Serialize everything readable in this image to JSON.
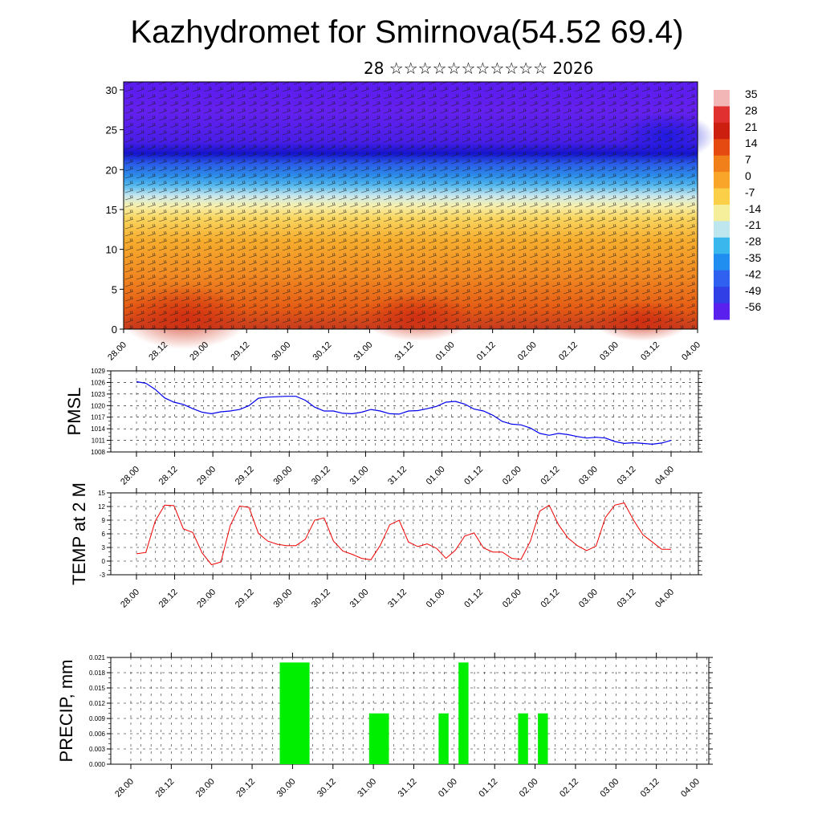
{
  "title": "Kazhydromet for Smirnova(54.52 69.4)",
  "subtitle": "28 ☆☆☆☆☆☆☆☆☆☆☆ 2026",
  "x_ticks": [
    "28.00",
    "28.12",
    "29.00",
    "29.12",
    "30.00",
    "30.12",
    "31.00",
    "31.12",
    "01.00",
    "01.12",
    "02.00",
    "02.12",
    "03.00",
    "03.12",
    "04.00"
  ],
  "chart_data": [
    {
      "type": "heatmap",
      "y_ticks": [
        "0",
        "5",
        "10",
        "15",
        "20",
        "25",
        "30"
      ],
      "ylim": [
        0,
        31
      ],
      "colorbar_labels": [
        "35",
        "28",
        "21",
        "14",
        "7",
        "0",
        "-7",
        "-14",
        "-21",
        "-28",
        "-35",
        "-42",
        "-49",
        "-56"
      ],
      "colorbar_colors": [
        "#f2b6b6",
        "#e03030",
        "#cc1f10",
        "#e54a10",
        "#f2801a",
        "#f8a52a",
        "#fbd048",
        "#f5ee9a",
        "#bde6ee",
        "#3ab8ee",
        "#1f8ef0",
        "#3060f0",
        "#3040e6",
        "#5a20ee"
      ],
      "notes": "Temperature cross-section with wind barbs"
    },
    {
      "type": "line",
      "ylabel": "PMSL",
      "y_ticks": [
        "1029",
        "1026",
        "1023",
        "1020",
        "1017",
        "1014",
        "1011",
        "1008"
      ],
      "ylim": [
        1008,
        1029
      ],
      "color": "#0000ee",
      "series": [
        {
          "x": [
            0,
            1,
            2,
            3,
            4,
            5,
            6,
            7,
            8,
            9,
            10,
            11,
            12,
            13,
            14,
            15,
            16,
            17,
            18,
            19,
            20,
            21,
            22,
            23,
            24,
            25,
            26,
            27,
            28,
            29,
            30,
            31,
            32,
            33,
            34,
            35,
            36,
            37,
            38,
            39,
            40,
            41,
            42,
            43,
            44,
            45,
            46,
            47,
            48,
            49,
            50,
            51,
            52,
            53,
            54,
            55,
            56,
            57
          ],
          "values": [
            1026.2,
            1025.8,
            1024.2,
            1022.0,
            1020.9,
            1020.3,
            1019.2,
            1018.3,
            1017.9,
            1018.4,
            1018.6,
            1019.0,
            1020.0,
            1021.9,
            1022.2,
            1022.3,
            1022.4,
            1022.4,
            1021.4,
            1019.6,
            1018.6,
            1018.6,
            1018.0,
            1017.9,
            1018.3,
            1019.0,
            1018.6,
            1017.9,
            1017.8,
            1018.6,
            1018.7,
            1019.2,
            1019.8,
            1020.9,
            1021.1,
            1020.4,
            1019.1,
            1018.6,
            1017.5,
            1015.9,
            1015.2,
            1015.0,
            1014.2,
            1012.8,
            1012.3,
            1012.8,
            1012.5,
            1012.0,
            1011.6,
            1011.8,
            1011.6,
            1010.7,
            1010.2,
            1010.4,
            1010.2,
            1010.0,
            1010.3,
            1011.0
          ]
        }
      ]
    },
    {
      "type": "line",
      "ylabel": "TEMP at 2 M",
      "y_ticks": [
        "15",
        "12",
        "9",
        "6",
        "3",
        "0",
        "-3"
      ],
      "ylim": [
        -3,
        15
      ],
      "color": "#ee0000",
      "series": [
        {
          "x": [
            0,
            1,
            2,
            3,
            4,
            5,
            6,
            7,
            8,
            9,
            10,
            11,
            12,
            13,
            14,
            15,
            16,
            17,
            18,
            19,
            20,
            21,
            22,
            23,
            24,
            25,
            26,
            27,
            28,
            29,
            30,
            31,
            32,
            33,
            34,
            35,
            36,
            37,
            38,
            39,
            40,
            41,
            42,
            43,
            44,
            45,
            46,
            47,
            48,
            49,
            50,
            51,
            52,
            53,
            54,
            55,
            56,
            57
          ],
          "values": [
            1.6,
            1.9,
            8.8,
            12.3,
            12.2,
            7.1,
            6.3,
            1.8,
            -0.8,
            -0.2,
            7.8,
            12.1,
            11.8,
            6.1,
            4.4,
            3.7,
            3.4,
            3.4,
            4.8,
            9.0,
            9.5,
            4.4,
            2.2,
            1.5,
            0.6,
            0.3,
            3.5,
            8.0,
            9.0,
            4.2,
            3.2,
            3.8,
            2.8,
            0.6,
            2.4,
            5.5,
            6.2,
            2.9,
            2.0,
            2.0,
            0.6,
            0.4,
            4.4,
            11.0,
            12.3,
            8.0,
            5.1,
            3.4,
            2.3,
            3.3,
            9.6,
            12.3,
            12.8,
            9.0,
            5.8,
            4.2,
            2.6,
            2.6
          ]
        }
      ]
    },
    {
      "type": "bar",
      "ylabel": "PRECIP, mm",
      "y_ticks": [
        "0.021",
        "0.018",
        "0.015",
        "0.012",
        "0.009",
        "0.006",
        "0.003",
        "0.000"
      ],
      "ylim": [
        0,
        0.021
      ],
      "color": "#00ee00",
      "bars": [
        {
          "start": 15.0,
          "end": 18.0,
          "value": 0.02
        },
        {
          "start": 24.0,
          "end": 26.0,
          "value": 0.01
        },
        {
          "start": 31.0,
          "end": 32.0,
          "value": 0.01
        },
        {
          "start": 33.0,
          "end": 34.0,
          "value": 0.02
        },
        {
          "start": 39.0,
          "end": 40.0,
          "value": 0.01
        },
        {
          "start": 41.0,
          "end": 42.0,
          "value": 0.01
        }
      ]
    }
  ]
}
